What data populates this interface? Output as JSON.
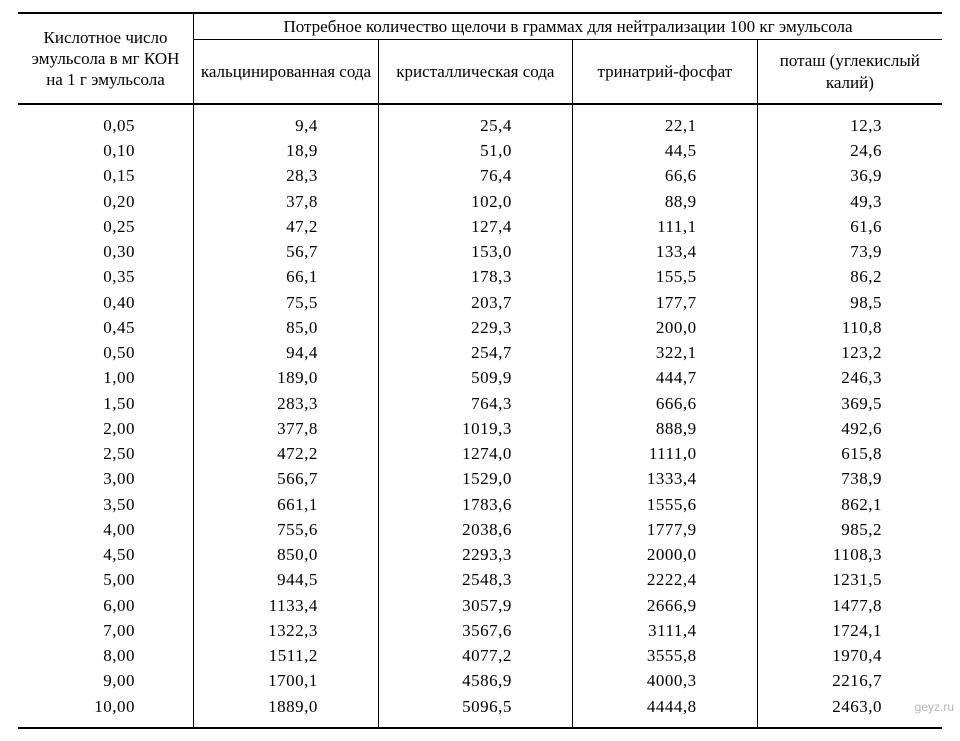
{
  "table": {
    "type": "table",
    "background_color": "#ffffff",
    "text_color": "#000000",
    "border_color": "#000000",
    "font_family": "Times New Roman",
    "header_fontsize": 17,
    "body_fontsize": 17,
    "row_header_label": "Кислотное число эмульсола в мг КОН на 1 г эмульсола",
    "group_header_label": "Потребное количество щелочи в граммах для нейтрализации 100 кг эмульсола",
    "columns": [
      "кальцинированная сода",
      "кристаллическая сода",
      "тринатрий-фосфат",
      "поташ (углекислый калий)"
    ],
    "column_widths_pct": [
      19,
      20,
      21,
      20,
      20
    ],
    "cell_align": "right",
    "rows": [
      [
        "0,05",
        "9,4",
        "25,4",
        "22,1",
        "12,3"
      ],
      [
        "0,10",
        "18,9",
        "51,0",
        "44,5",
        "24,6"
      ],
      [
        "0,15",
        "28,3",
        "76,4",
        "66,6",
        "36,9"
      ],
      [
        "0,20",
        "37,8",
        "102,0",
        "88,9",
        "49,3"
      ],
      [
        "0,25",
        "47,2",
        "127,4",
        "111,1",
        "61,6"
      ],
      [
        "0,30",
        "56,7",
        "153,0",
        "133,4",
        "73,9"
      ],
      [
        "0,35",
        "66,1",
        "178,3",
        "155,5",
        "86,2"
      ],
      [
        "0,40",
        "75,5",
        "203,7",
        "177,7",
        "98,5"
      ],
      [
        "0,45",
        "85,0",
        "229,3",
        "200,0",
        "110,8"
      ],
      [
        "0,50",
        "94,4",
        "254,7",
        "322,1",
        "123,2"
      ],
      [
        "1,00",
        "189,0",
        "509,9",
        "444,7",
        "246,3"
      ],
      [
        "1,50",
        "283,3",
        "764,3",
        "666,6",
        "369,5"
      ],
      [
        "2,00",
        "377,8",
        "1019,3",
        "888,9",
        "492,6"
      ],
      [
        "2,50",
        "472,2",
        "1274,0",
        "1111,0",
        "615,8"
      ],
      [
        "3,00",
        "566,7",
        "1529,0",
        "1333,4",
        "738,9"
      ],
      [
        "3,50",
        "661,1",
        "1783,6",
        "1555,6",
        "862,1"
      ],
      [
        "4,00",
        "755,6",
        "2038,6",
        "1777,9",
        "985,2"
      ],
      [
        "4,50",
        "850,0",
        "2293,3",
        "2000,0",
        "1108,3"
      ],
      [
        "5,00",
        "944,5",
        "2548,3",
        "2222,4",
        "1231,5"
      ],
      [
        "6,00",
        "1133,4",
        "3057,9",
        "2666,9",
        "1477,8"
      ],
      [
        "7,00",
        "1322,3",
        "3567,6",
        "3111,4",
        "1724,1"
      ],
      [
        "8,00",
        "1511,2",
        "4077,2",
        "3555,8",
        "1970,4"
      ],
      [
        "9,00",
        "1700,1",
        "4586,9",
        "4000,3",
        "2216,7"
      ],
      [
        "10,00",
        "1889,0",
        "5096,5",
        "4444,8",
        "2463,0"
      ]
    ]
  },
  "watermark": "geyz.ru"
}
